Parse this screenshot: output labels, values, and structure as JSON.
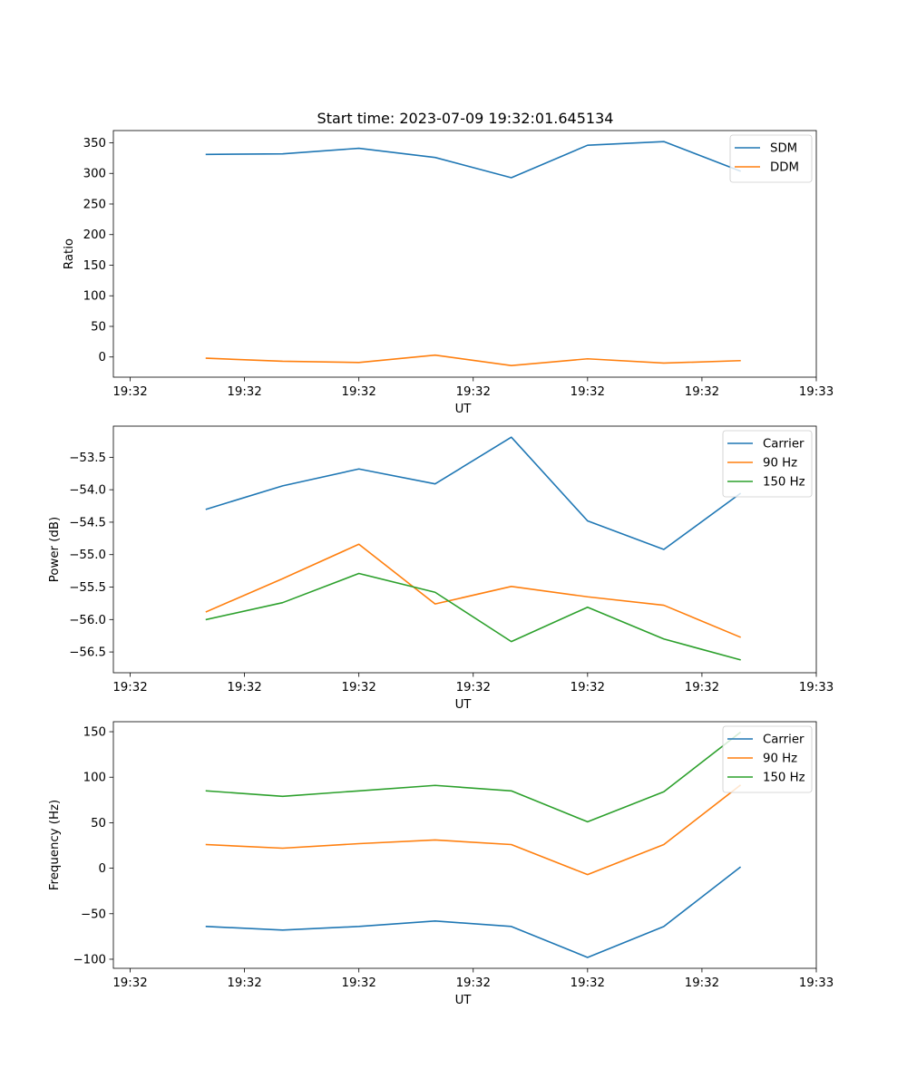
{
  "figure_title": "Start time: 2023-07-09 19:32:01.645134",
  "chart_data": [
    {
      "type": "line",
      "title": "Start time: 2023-07-09 19:32:01.645134",
      "xlabel": "UT",
      "ylabel": "Ratio",
      "x": [
        0.5,
        1.0,
        1.5,
        2.0,
        2.5,
        3.0,
        3.5,
        4.0
      ],
      "xlim": [
        -0.11,
        4.5
      ],
      "ylim": [
        -33,
        370
      ],
      "xticks": [
        0,
        0.75,
        1.5,
        2.25,
        3.0,
        3.75,
        4.5
      ],
      "xtick_labels": [
        "19:32",
        "19:32",
        "19:32",
        "19:32",
        "19:32",
        "19:32",
        "19:33"
      ],
      "yticks": [
        0,
        50,
        100,
        150,
        200,
        250,
        300,
        350
      ],
      "ytick_labels": [
        "0",
        "50",
        "100",
        "150",
        "200",
        "250",
        "300",
        "350"
      ],
      "legend_position": "top-right",
      "series": [
        {
          "name": "SDM",
          "color": "#1f77b4",
          "values": [
            331,
            332,
            341,
            326,
            293,
            346,
            352,
            304
          ]
        },
        {
          "name": "DDM",
          "color": "#ff7f0e",
          "values": [
            -2,
            -7,
            -9,
            3,
            -14,
            -3,
            -10,
            -6
          ]
        }
      ]
    },
    {
      "type": "line",
      "title": "",
      "xlabel": "UT",
      "ylabel": "Power (dB)",
      "x": [
        0.5,
        1.0,
        1.5,
        2.0,
        2.5,
        3.0,
        3.5,
        4.0
      ],
      "xlim": [
        -0.11,
        4.5
      ],
      "ylim": [
        -56.82,
        -53.02
      ],
      "xticks": [
        0,
        0.75,
        1.5,
        2.25,
        3.0,
        3.75,
        4.5
      ],
      "xtick_labels": [
        "19:32",
        "19:32",
        "19:32",
        "19:32",
        "19:32",
        "19:32",
        "19:33"
      ],
      "yticks": [
        -56.5,
        -56.0,
        -55.5,
        -55.0,
        -54.5,
        -54.0,
        -53.5
      ],
      "ytick_labels": [
        "−56.5",
        "−56.0",
        "−55.5",
        "−55.0",
        "−54.5",
        "−54.0",
        "−53.5"
      ],
      "legend_position": "top-right",
      "series": [
        {
          "name": "Carrier",
          "color": "#1f77b4",
          "values": [
            -54.3,
            -53.94,
            -53.68,
            -53.91,
            -53.19,
            -54.48,
            -54.92,
            -54.06
          ]
        },
        {
          "name": "90 Hz",
          "color": "#ff7f0e",
          "values": [
            -55.88,
            -55.37,
            -54.84,
            -55.76,
            -55.49,
            -55.65,
            -55.78,
            -56.27
          ]
        },
        {
          "name": "150 Hz",
          "color": "#2ca02c",
          "values": [
            -56.0,
            -55.74,
            -55.29,
            -55.58,
            -56.34,
            -55.81,
            -56.3,
            -56.62
          ]
        }
      ]
    },
    {
      "type": "line",
      "title": "",
      "xlabel": "UT",
      "ylabel": "Frequency (Hz)",
      "x": [
        0.5,
        1.0,
        1.5,
        2.0,
        2.5,
        3.0,
        3.5,
        4.0
      ],
      "xlim": [
        -0.11,
        4.5
      ],
      "ylim": [
        -110,
        161
      ],
      "xticks": [
        0,
        0.75,
        1.5,
        2.25,
        3.0,
        3.75,
        4.5
      ],
      "xtick_labels": [
        "19:32",
        "19:32",
        "19:32",
        "19:32",
        "19:32",
        "19:32",
        "19:33"
      ],
      "yticks": [
        -100,
        -50,
        0,
        50,
        100,
        150
      ],
      "ytick_labels": [
        "−100",
        "−50",
        "0",
        "50",
        "100",
        "150"
      ],
      "legend_position": "top-right",
      "series": [
        {
          "name": "Carrier",
          "color": "#1f77b4",
          "values": [
            -64,
            -68,
            -64,
            -58,
            -64,
            -98,
            -64,
            1
          ]
        },
        {
          "name": "90 Hz",
          "color": "#ff7f0e",
          "values": [
            26,
            22,
            27,
            31,
            26,
            -7,
            26,
            91
          ]
        },
        {
          "name": "150 Hz",
          "color": "#2ca02c",
          "values": [
            85,
            79,
            85,
            91,
            85,
            51,
            84,
            149
          ]
        }
      ]
    }
  ]
}
